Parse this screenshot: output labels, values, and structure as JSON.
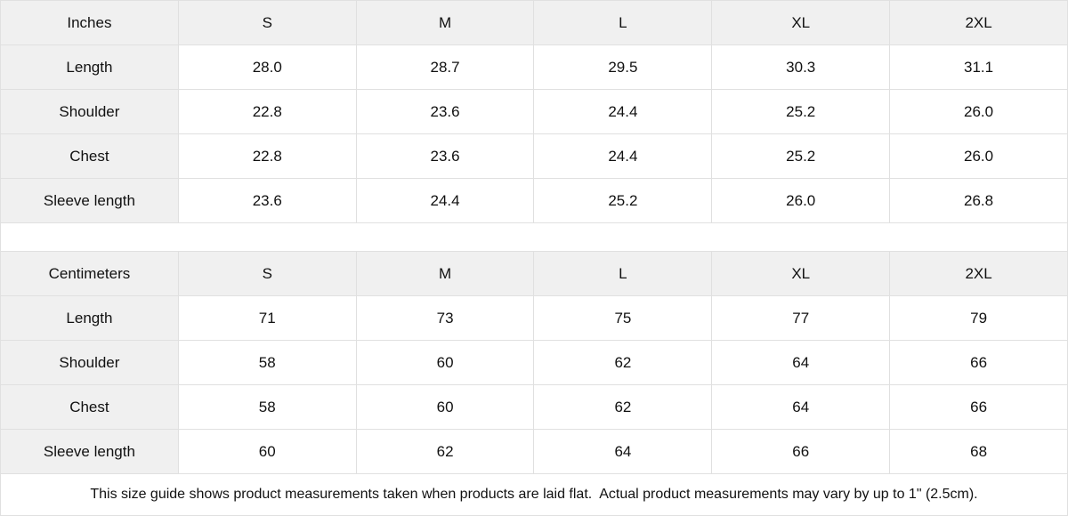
{
  "colors": {
    "header_bg": "#f0f0f0",
    "border": "#e0e0e0",
    "text": "#111111",
    "background": "#ffffff"
  },
  "inches": {
    "unit": "Inches",
    "columns": [
      "S",
      "M",
      "L",
      "XL",
      "2XL"
    ],
    "rows": [
      {
        "label": "Length",
        "values": [
          "28.0",
          "28.7",
          "29.5",
          "30.3",
          "31.1"
        ]
      },
      {
        "label": "Shoulder",
        "values": [
          "22.8",
          "23.6",
          "24.4",
          "25.2",
          "26.0"
        ]
      },
      {
        "label": "Chest",
        "values": [
          "22.8",
          "23.6",
          "24.4",
          "25.2",
          "26.0"
        ]
      },
      {
        "label": "Sleeve length",
        "values": [
          "23.6",
          "24.4",
          "25.2",
          "26.0",
          "26.8"
        ]
      }
    ]
  },
  "centimeters": {
    "unit": "Centimeters",
    "columns": [
      "S",
      "M",
      "L",
      "XL",
      "2XL"
    ],
    "rows": [
      {
        "label": "Length",
        "values": [
          "71",
          "73",
          "75",
          "77",
          "79"
        ]
      },
      {
        "label": "Shoulder",
        "values": [
          "58",
          "60",
          "62",
          "64",
          "66"
        ]
      },
      {
        "label": "Chest",
        "values": [
          "58",
          "60",
          "62",
          "64",
          "66"
        ]
      },
      {
        "label": "Sleeve length",
        "values": [
          "60",
          "62",
          "64",
          "66",
          "68"
        ]
      }
    ]
  },
  "footer": {
    "note": "This size guide shows product measurements taken when products are laid flat.  Actual product measurements may vary by up to 1\" (2.5cm)."
  },
  "chart_data": [
    {
      "type": "table",
      "title": "Inches",
      "columns": [
        "Inches",
        "S",
        "M",
        "L",
        "XL",
        "2XL"
      ],
      "rows": [
        [
          "Length",
          28.0,
          28.7,
          29.5,
          30.3,
          31.1
        ],
        [
          "Shoulder",
          22.8,
          23.6,
          24.4,
          25.2,
          26.0
        ],
        [
          "Chest",
          22.8,
          23.6,
          24.4,
          25.2,
          26.0
        ],
        [
          "Sleeve length",
          23.6,
          24.4,
          25.2,
          26.0,
          26.8
        ]
      ]
    },
    {
      "type": "table",
      "title": "Centimeters",
      "columns": [
        "Centimeters",
        "S",
        "M",
        "L",
        "XL",
        "2XL"
      ],
      "rows": [
        [
          "Length",
          71,
          73,
          75,
          77,
          79
        ],
        [
          "Shoulder",
          58,
          60,
          62,
          64,
          66
        ],
        [
          "Chest",
          58,
          60,
          62,
          64,
          66
        ],
        [
          "Sleeve length",
          60,
          62,
          64,
          66,
          68
        ]
      ]
    }
  ]
}
